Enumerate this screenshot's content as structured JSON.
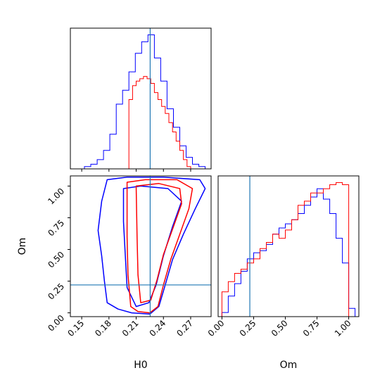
{
  "chart_data": [
    {
      "type": "histogram",
      "panel": "H0 marginal",
      "xlim": [
        0.1375,
        0.2925
      ],
      "truth": 0.2254,
      "y_ticks_shown": false,
      "series": [
        {
          "color": "#0000ff",
          "edges": [
            0.153,
            0.16,
            0.167,
            0.174,
            0.181,
            0.188,
            0.195,
            0.202,
            0.209,
            0.216,
            0.223,
            0.23,
            0.237,
            0.244,
            0.251,
            0.258,
            0.265,
            0.272,
            0.279,
            0.286
          ],
          "counts": [
            1,
            2,
            4,
            8,
            15,
            28,
            34,
            42,
            50,
            55,
            58,
            48,
            38,
            26,
            18,
            10,
            5,
            2,
            1
          ]
        },
        {
          "color": "#ff0000",
          "edges": [
            0.202,
            0.206,
            0.21,
            0.214,
            0.218,
            0.222,
            0.226,
            0.23,
            0.234,
            0.238,
            0.242,
            0.246,
            0.25,
            0.254,
            0.258,
            0.262,
            0.266,
            0.27
          ],
          "counts": [
            30,
            36,
            38,
            39,
            40,
            39,
            37,
            33,
            30,
            27,
            24,
            20,
            16,
            12,
            8,
            4,
            1
          ]
        }
      ]
    },
    {
      "type": "contour",
      "panel": "H0 vs Om",
      "xlabel": "H0",
      "ylabel": "Om",
      "xlim": [
        0.1375,
        0.2925
      ],
      "ylim": [
        -0.03,
        1.08
      ],
      "x_ticks": [
        "0.15",
        "0.18",
        "0.21",
        "0.24",
        "0.27"
      ],
      "x_tick_values": [
        0.15,
        0.18,
        0.21,
        0.24,
        0.27
      ],
      "y_ticks": [
        "0.00",
        "0.25",
        "0.50",
        "0.75",
        "1.00"
      ],
      "y_tick_values": [
        0,
        0.25,
        0.5,
        0.75,
        1.0
      ],
      "truth": {
        "x": 0.2254,
        "y": 0.22
      },
      "series": [
        {
          "color": "#0000ff",
          "contours": [
            [
              [
                0.178,
                1.05
              ],
              [
                0.2,
                1.07
              ],
              [
                0.24,
                1.07
              ],
              [
                0.28,
                1.05
              ],
              [
                0.286,
                0.98
              ],
              [
                0.275,
                0.82
              ],
              [
                0.262,
                0.62
              ],
              [
                0.25,
                0.42
              ],
              [
                0.242,
                0.22
              ],
              [
                0.235,
                0.05
              ],
              [
                0.225,
                -0.01
              ],
              [
                0.205,
                0.0
              ],
              [
                0.19,
                0.03
              ],
              [
                0.178,
                0.08
              ],
              [
                0.175,
                0.25
              ],
              [
                0.172,
                0.45
              ],
              [
                0.168,
                0.65
              ],
              [
                0.172,
                0.88
              ],
              [
                0.178,
                1.05
              ]
            ],
            [
              [
                0.196,
                0.98
              ],
              [
                0.215,
                1.0
              ],
              [
                0.245,
                0.98
              ],
              [
                0.26,
                0.88
              ],
              [
                0.25,
                0.68
              ],
              [
                0.24,
                0.45
              ],
              [
                0.232,
                0.22
              ],
              [
                0.224,
                0.08
              ],
              [
                0.21,
                0.05
              ],
              [
                0.2,
                0.2
              ],
              [
                0.198,
                0.45
              ],
              [
                0.196,
                0.72
              ],
              [
                0.196,
                0.98
              ]
            ]
          ]
        },
        {
          "color": "#ff0000",
          "contours": [
            [
              [
                0.2,
                1.03
              ],
              [
                0.22,
                1.05
              ],
              [
                0.255,
                1.05
              ],
              [
                0.272,
                0.98
              ],
              [
                0.268,
                0.82
              ],
              [
                0.258,
                0.62
              ],
              [
                0.248,
                0.42
              ],
              [
                0.24,
                0.22
              ],
              [
                0.234,
                0.05
              ],
              [
                0.225,
                0.0
              ],
              [
                0.212,
                0.01
              ],
              [
                0.204,
                0.05
              ],
              [
                0.201,
                0.3
              ],
              [
                0.2,
                0.6
              ],
              [
                0.2,
                1.03
              ]
            ],
            [
              [
                0.21,
                1.0
              ],
              [
                0.235,
                1.02
              ],
              [
                0.258,
                0.98
              ],
              [
                0.26,
                0.86
              ],
              [
                0.25,
                0.66
              ],
              [
                0.24,
                0.46
              ],
              [
                0.233,
                0.26
              ],
              [
                0.226,
                0.1
              ],
              [
                0.215,
                0.08
              ],
              [
                0.212,
                0.3
              ],
              [
                0.211,
                0.6
              ],
              [
                0.21,
                1.0
              ]
            ]
          ]
        }
      ]
    },
    {
      "type": "histogram",
      "panel": "Om marginal",
      "xlabel": "Om",
      "xlim": [
        -0.03,
        1.08
      ],
      "x_ticks": [
        "0.00",
        "0.25",
        "0.50",
        "0.75",
        "1.00"
      ],
      "x_tick_values": [
        0,
        0.25,
        0.5,
        0.75,
        1.0
      ],
      "truth": 0.22,
      "y_ticks_shown": false,
      "series": [
        {
          "color": "#0000ff",
          "edges": [
            0.0,
            0.05,
            0.1,
            0.15,
            0.2,
            0.25,
            0.3,
            0.35,
            0.4,
            0.45,
            0.5,
            0.55,
            0.6,
            0.65,
            0.7,
            0.75,
            0.8,
            0.85,
            0.9,
            0.95,
            1.0,
            1.05
          ],
          "counts": [
            2,
            10,
            16,
            22,
            28,
            31,
            32,
            35,
            40,
            43,
            45,
            47,
            50,
            54,
            58,
            62,
            57,
            50,
            38,
            26,
            4
          ]
        },
        {
          "color": "#ff0000",
          "edges": [
            0.0,
            0.05,
            0.1,
            0.15,
            0.2,
            0.25,
            0.3,
            0.35,
            0.4,
            0.45,
            0.5,
            0.55,
            0.6,
            0.65,
            0.7,
            0.75,
            0.8,
            0.85,
            0.9,
            0.95,
            1.0
          ],
          "counts": [
            12,
            17,
            21,
            23,
            26,
            28,
            33,
            36,
            40,
            38,
            42,
            47,
            54,
            56,
            60,
            60,
            62,
            64,
            65,
            64
          ]
        }
      ]
    }
  ]
}
